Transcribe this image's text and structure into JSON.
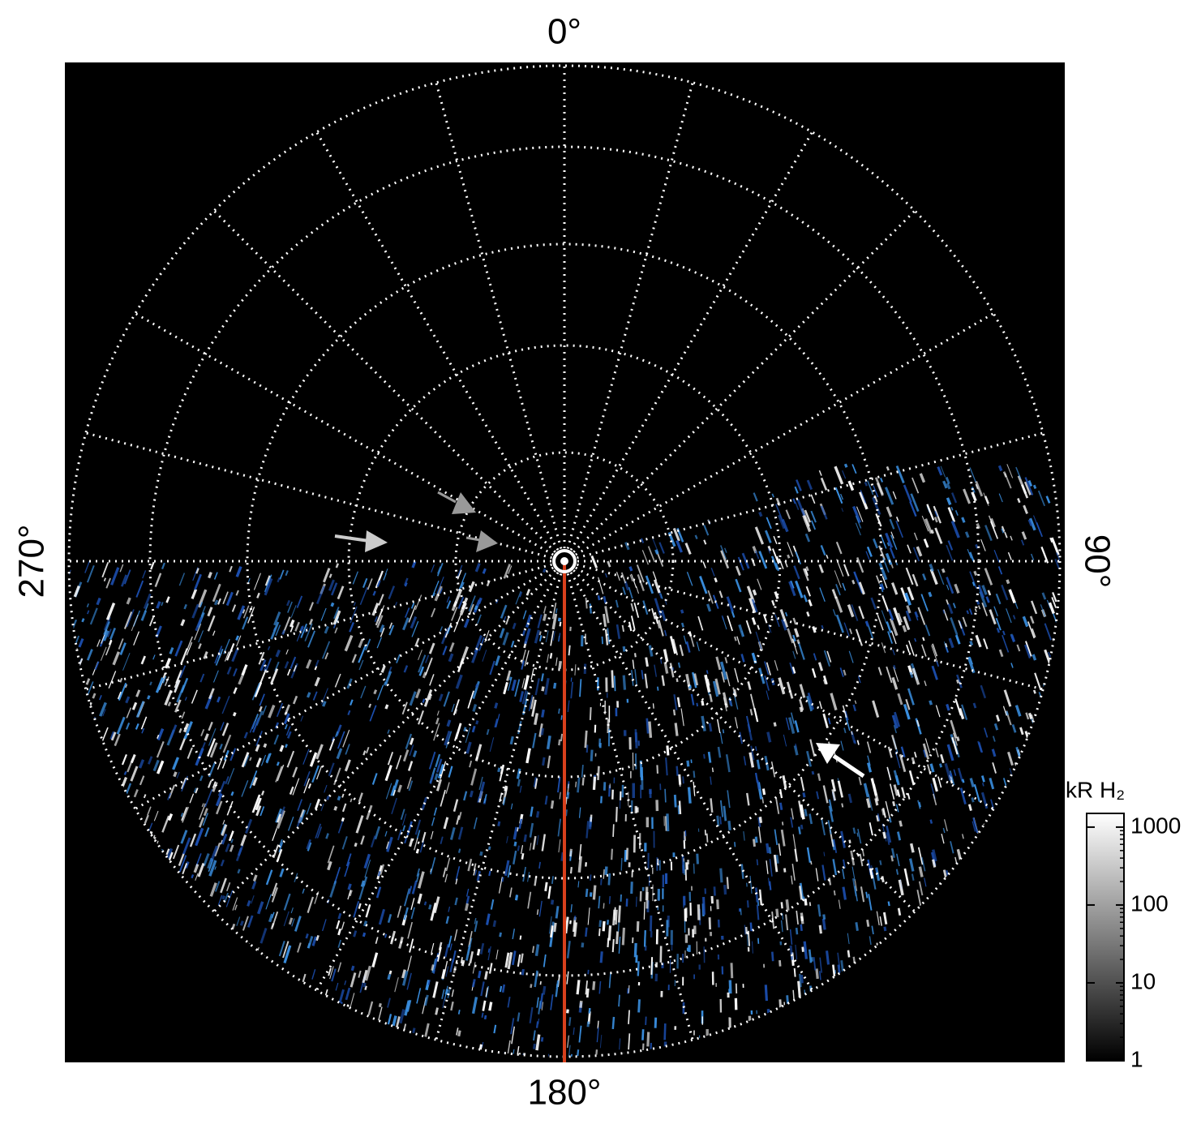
{
  "chart_data": {
    "type": "polar_image",
    "angle_labels": [
      "0°",
      "90°",
      "180°",
      "270°"
    ],
    "grid": true,
    "colorbar": {
      "label": "kR H₂",
      "log": true,
      "lim": [
        1,
        1500
      ],
      "ticks": [
        1,
        10,
        100,
        1000
      ]
    }
  }
}
